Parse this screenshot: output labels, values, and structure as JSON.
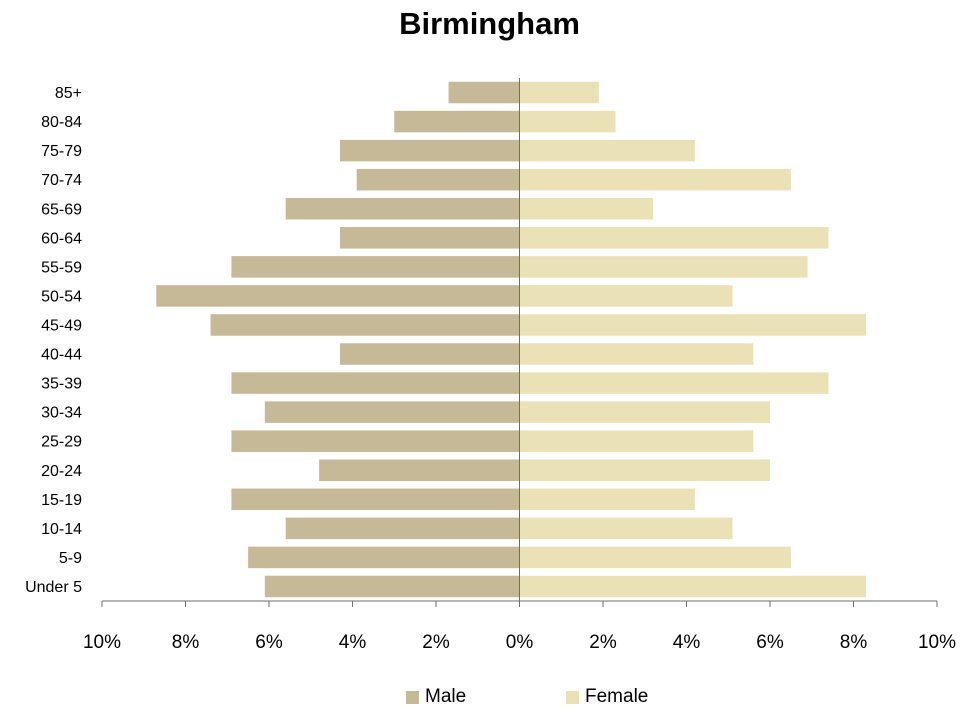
{
  "chart_data": {
    "type": "bar",
    "orientation": "horizontal",
    "title": "Birmingham",
    "categories": [
      "Under 5",
      "5-9",
      "10-14",
      "15-19",
      "20-24",
      "25-29",
      "30-34",
      "35-39",
      "40-44",
      "45-49",
      "50-54",
      "55-59",
      "60-64",
      "65-69",
      "70-74",
      "75-79",
      "80-84",
      "85+"
    ],
    "series": [
      {
        "name": "Male",
        "color": "#c6b997",
        "values": [
          6.1,
          6.5,
          5.6,
          6.9,
          4.8,
          6.9,
          6.1,
          6.9,
          4.3,
          7.4,
          8.7,
          6.9,
          4.3,
          5.6,
          3.9,
          4.3,
          3.0,
          1.7
        ]
      },
      {
        "name": "Female",
        "color": "#ebe1b7",
        "values": [
          8.3,
          6.5,
          5.1,
          4.2,
          6.0,
          5.6,
          6.0,
          7.4,
          5.6,
          8.3,
          5.1,
          6.9,
          7.4,
          3.2,
          6.5,
          4.2,
          2.3,
          1.9
        ]
      }
    ],
    "xlim": [
      -10,
      10
    ],
    "x_ticks": [
      -10,
      -8,
      -6,
      -4,
      -2,
      0,
      2,
      4,
      6,
      8,
      10
    ],
    "x_tick_labels": [
      "10%",
      "8%",
      "6%",
      "4%",
      "2%",
      "0%",
      "2%",
      "4%",
      "6%",
      "8%",
      "10%"
    ],
    "xlabel": "",
    "ylabel": "",
    "grid": false,
    "legend_position": "bottom"
  }
}
